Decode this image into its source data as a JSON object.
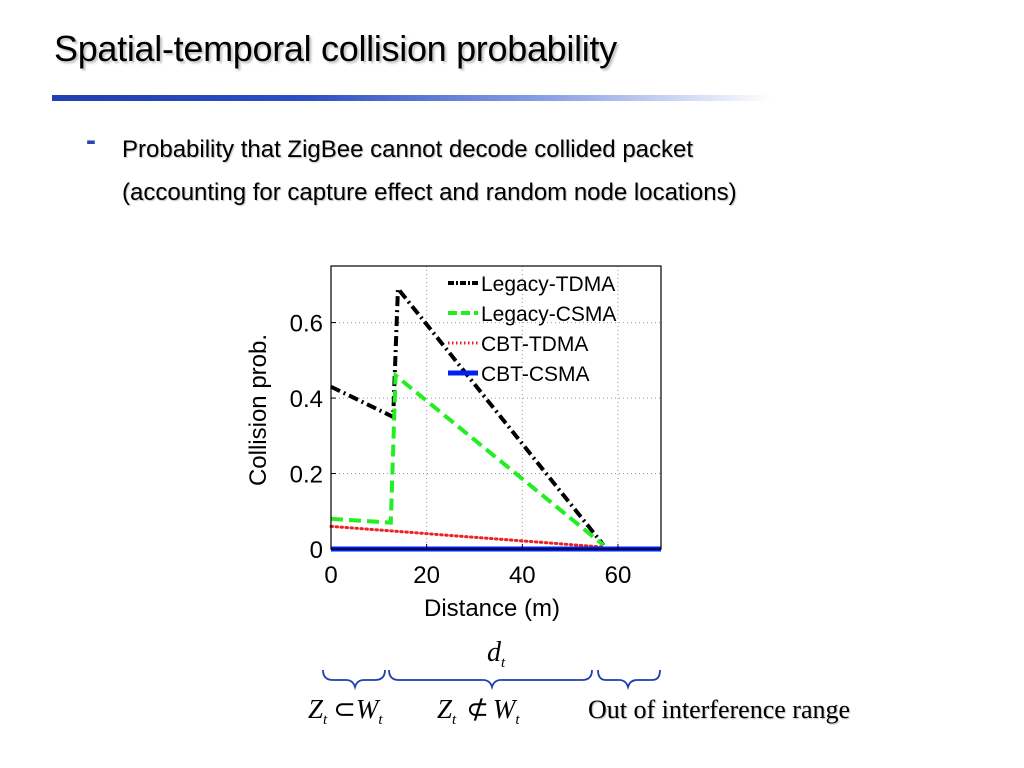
{
  "slide": {
    "title": "Spatial-temporal collision probability",
    "bullet_marker": "-",
    "bullet_line1": "Probability that ZigBee cannot decode collided packet",
    "bullet_line2": "(accounting for capture effect and random node locations)"
  },
  "annotations": {
    "d_label": "d",
    "d_sub": "t",
    "region1": {
      "a": "Z",
      "a_sub": "t",
      "op": "⊂",
      "b": "W",
      "b_sub": "t"
    },
    "region2": {
      "a": "Z",
      "a_sub": "t",
      "op": "⊄",
      "b": "W",
      "b_sub": "t"
    },
    "region3": "Out of interference range"
  },
  "colors": {
    "accent": "#2743b8",
    "brace": "#1f3fb3"
  },
  "chart_data": {
    "type": "line",
    "xlabel": "Distance (m)",
    "ylabel": "Collision prob.",
    "xlim": [
      0,
      69
    ],
    "ylim": [
      0,
      0.75
    ],
    "xticks": [
      0,
      20,
      40,
      60
    ],
    "yticks": [
      0,
      0.2,
      0.4,
      0.6
    ],
    "grid": true,
    "legend_position": "top-right",
    "series": [
      {
        "name": "Legacy-TDMA",
        "color": "#000000",
        "style": "dashdot",
        "x": [
          0,
          13,
          14,
          57
        ],
        "y": [
          0.43,
          0.35,
          0.69,
          0.01
        ]
      },
      {
        "name": "Legacy-CSMA",
        "color": "#22ee22",
        "style": "dashed",
        "x": [
          0,
          12.5,
          13.5,
          57
        ],
        "y": [
          0.08,
          0.07,
          0.46,
          0.01
        ]
      },
      {
        "name": "CBT-TDMA",
        "color": "#ee2222",
        "style": "dotted",
        "x": [
          0,
          57
        ],
        "y": [
          0.06,
          0.005
        ]
      },
      {
        "name": "CBT-CSMA",
        "color": "#0022ee",
        "style": "solid",
        "x": [
          0,
          69
        ],
        "y": [
          0.0,
          0.0
        ]
      }
    ]
  }
}
